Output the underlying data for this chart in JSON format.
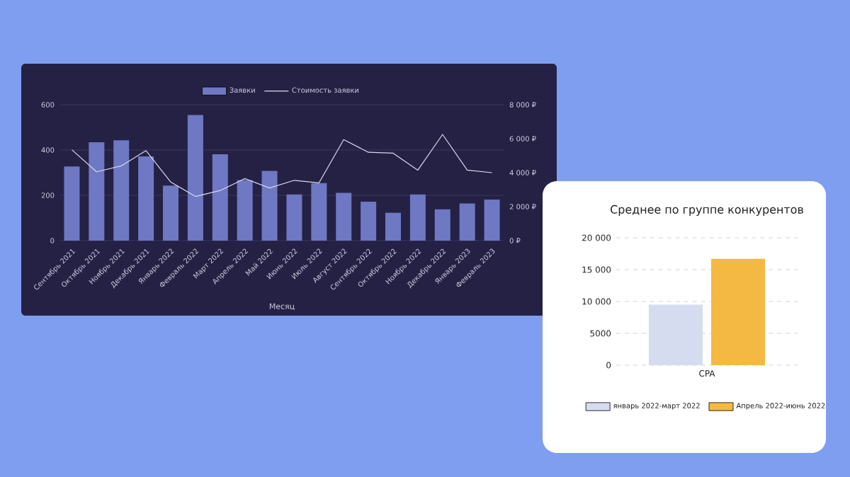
{
  "chart_data": [
    {
      "type": "bar",
      "xlabel": "Месяц",
      "categories": [
        "Сентябрь 2021",
        "Октябрь 2021",
        "Ноябрь 2021",
        "Декабрь 2021",
        "Январь 2022",
        "Февраль 2022",
        "Март 2022",
        "Апрель 2022",
        "Май 2022",
        "Июнь 2022",
        "Июль 2022",
        "Август 2022",
        "Сентябрь 2022",
        "Октябрь 2022",
        "Ноябрь 2022",
        "Декабрь 2022",
        "Январь 2023",
        "Февраль 2023"
      ],
      "series": [
        {
          "name": "Заявки",
          "color": "#6e78c3",
          "values": [
            327,
            434,
            443,
            372,
            243,
            555,
            381,
            267,
            308,
            204,
            254,
            211,
            172,
            123,
            204,
            138,
            164,
            181
          ]
        },
        {
          "name": "Стоимость заявки",
          "type": "line",
          "axis": "y2",
          "color": "#d8d8ee",
          "values": [
            5350,
            4050,
            4400,
            5300,
            3450,
            2600,
            2950,
            3650,
            3100,
            3550,
            3400,
            5950,
            5200,
            5150,
            4150,
            6250,
            4150,
            4000
          ]
        }
      ],
      "ylim": [
        0,
        600
      ],
      "yticks": [
        0,
        200,
        400,
        600
      ],
      "y2lim": [
        0,
        8000
      ],
      "y2ticks": [
        {
          "value": 0,
          "label": "0 ₽"
        },
        {
          "value": 2000,
          "label": "2 000 ₽"
        },
        {
          "value": 4000,
          "label": "4 000 ₽"
        },
        {
          "value": 6000,
          "label": "6 000 ₽"
        },
        {
          "value": 8000,
          "label": "8 000 ₽"
        }
      ],
      "grid": "y",
      "legend": "top"
    },
    {
      "type": "bar",
      "title": "Среднее по группе конкурентов",
      "categories": [
        "CPA"
      ],
      "series": [
        {
          "name": "январь 2022-март 2022",
          "color": "#d5dcef",
          "values": [
            9500
          ]
        },
        {
          "name": "Апрель 2022-июнь 2022",
          "color": "#f4b942",
          "values": [
            16700
          ]
        }
      ],
      "ylim": [
        0,
        20000
      ],
      "yticks": [
        0,
        5000,
        {
          "value": 10000,
          "label": "10 000"
        },
        {
          "value": 15000,
          "label": "15 000"
        },
        {
          "value": 20000,
          "label": "20 000"
        }
      ],
      "grid": "y",
      "legend": "bottom"
    }
  ]
}
